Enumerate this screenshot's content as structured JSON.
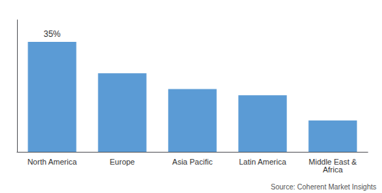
{
  "chart_data": {
    "type": "bar",
    "categories": [
      "North America",
      "Europe",
      "Asia Pacific",
      "Latin America",
      "Middle East &\nAfrica"
    ],
    "values": [
      35,
      25,
      20,
      18,
      10
    ],
    "data_labels": true,
    "value_labels": [
      "35%",
      null,
      null,
      null,
      null
    ],
    "color": "#5B9BD5",
    "ylim": [
      0,
      42
    ],
    "yticks": [],
    "tick_labels": "x",
    "grid": false,
    "annotations": [
      "Source: Coherent Market Insights"
    ]
  }
}
